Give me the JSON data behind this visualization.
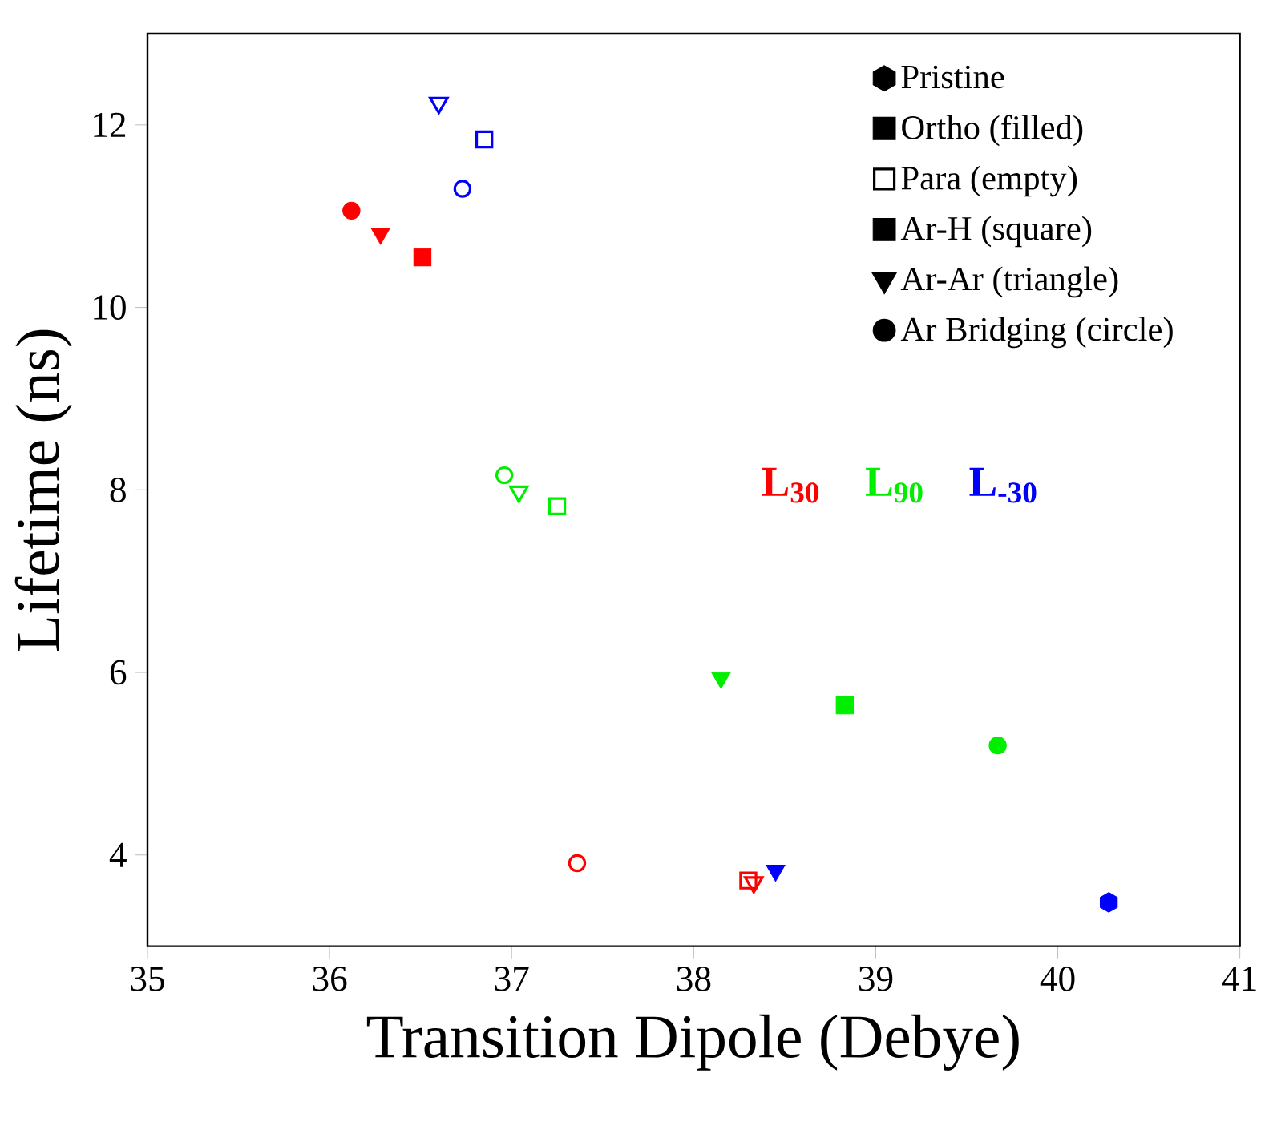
{
  "chart_data": {
    "type": "scatter",
    "xlabel": "Transition Dipole (Debye)",
    "ylabel": "Lifetime (ns)",
    "xlim": [
      35,
      41
    ],
    "xticks": [
      35,
      36,
      37,
      38,
      39,
      40,
      41
    ],
    "ylim": [
      3,
      13
    ],
    "yticks": [
      4,
      6,
      8,
      10,
      12
    ],
    "legend": "top right",
    "grid": false,
    "series": [
      {
        "name": "Pristine",
        "color": "#000000",
        "marker": "hexagon"
      },
      {
        "name": "Ortho (filled)",
        "color": "#000000",
        "marker": "square"
      },
      {
        "name": "Para (empty)",
        "color": "#000000",
        "marker": "square-open"
      },
      {
        "name": "Ar-H (square)",
        "color": "#000000",
        "marker": "square"
      },
      {
        "name": "Ar-Ar (triangle)",
        "color": "#000000",
        "marker": "triangle-down"
      },
      {
        "name": "Ar Bridging (circle)",
        "color": "#000000",
        "marker": "circle"
      },
      {
        "name": "**L$_{30}$**",
        "color": "#ff0000",
        "marker": [
          "circle",
          "triangle-down",
          "square",
          "circle-open",
          "square-open",
          "triangle-down-open"
        ],
        "x": [
          36.12,
          36.28,
          36.51,
          37.36,
          38.3,
          38.33
        ],
        "values": [
          11.06,
          10.81,
          10.55,
          3.91,
          3.72,
          3.7
        ]
      },
      {
        "name": "**L$_{90}$**",
        "color": "#00ee00",
        "marker": [
          "circle-open",
          "triangle-down-open",
          "square-open",
          "triangle-down",
          "square",
          "circle"
        ],
        "x": [
          36.96,
          37.04,
          37.25,
          38.15,
          38.83,
          39.67
        ],
        "values": [
          8.16,
          7.98,
          7.82,
          5.94,
          5.64,
          5.2
        ]
      },
      {
        "name": "**L$_{-30}$**",
        "color": "#0000ff",
        "marker": [
          "triangle-down-open",
          "square-open",
          "circle-open",
          "triangle-down",
          "hexagon"
        ],
        "x": [
          36.6,
          36.85,
          36.73,
          38.45,
          40.28
        ],
        "values": [
          12.24,
          11.84,
          11.3,
          3.83,
          3.48
        ]
      }
    ]
  }
}
